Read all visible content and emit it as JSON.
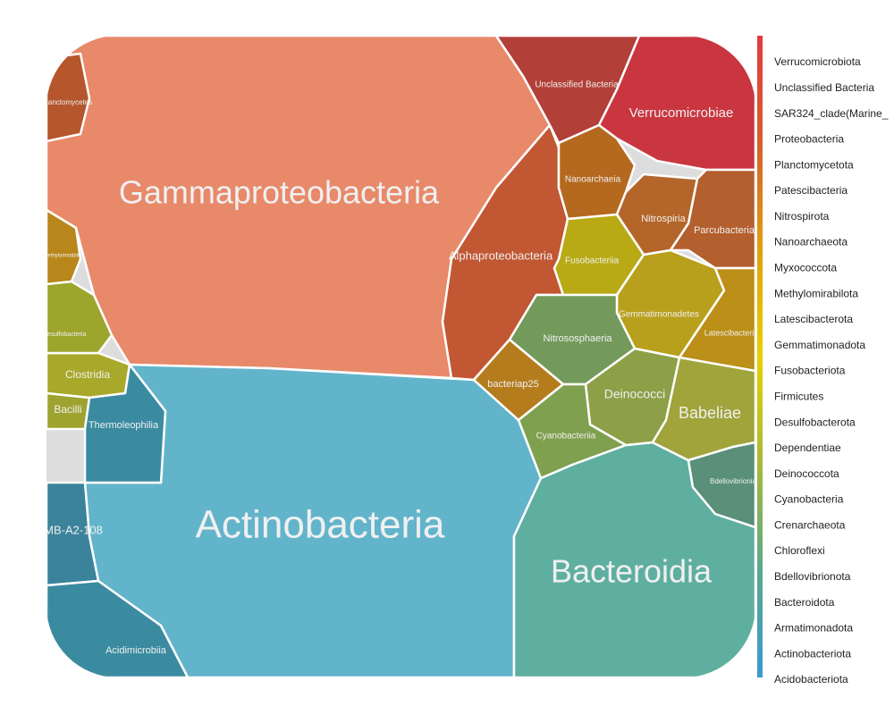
{
  "chart_data": {
    "type": "voronoi-treemap",
    "cells": [
      {
        "label": "Gammaproteobacteria",
        "color": "#e8896a"
      },
      {
        "label": "Actinobacteria",
        "color": "#62b4cb"
      },
      {
        "label": "Bacteroidia",
        "color": "#5fafa0"
      },
      {
        "label": "Alphaproteobacteria",
        "color": "#c25733"
      },
      {
        "label": "Unclassified Bacteria",
        "color": "#b23f38"
      },
      {
        "label": "Verrucomicrobiae",
        "color": "#c93640"
      },
      {
        "label": "Nanoarchaeia",
        "color": "#b5691f"
      },
      {
        "label": "Nitrospiria",
        "color": "#b4662a"
      },
      {
        "label": "Parcubacteria",
        "color": "#b35f2e"
      },
      {
        "label": "Fusobacteriia",
        "color": "#b9aa15"
      },
      {
        "label": "Gemmatimonadetes",
        "color": "#b8a01d"
      },
      {
        "label": "Latescibacteria",
        "color": "#bb8f18"
      },
      {
        "label": "Nitrososphaeria",
        "color": "#739a5b"
      },
      {
        "label": "bacteriap25",
        "color": "#b57c1e"
      },
      {
        "label": "Deinococci",
        "color": "#8ea047"
      },
      {
        "label": "Babeliae",
        "color": "#a0a43a"
      },
      {
        "label": "Cyanobacteriia",
        "color": "#7fa04e"
      },
      {
        "label": "Bdellovibrionia",
        "color": "#5a8f7a"
      },
      {
        "label": "Clostridia",
        "color": "#a8a82a"
      },
      {
        "label": "Bacilli",
        "color": "#9ea330"
      },
      {
        "label": "Thermoleophilia",
        "color": "#3b8ba0"
      },
      {
        "label": "MB-A2-108",
        "color": "#3a839a"
      },
      {
        "label": "Acidimicrobiia",
        "color": "#3b8ba0"
      },
      {
        "label": "Planctomycetes",
        "color": "#b5562d"
      },
      {
        "label": "Methylomirabilia",
        "color": "#b8861b"
      },
      {
        "label": "Desulfobacteria",
        "color": "#9da52d"
      }
    ],
    "legend": {
      "labels": [
        "Verrucomicrobiota",
        "Unclassified Bacteria",
        "SAR324_clade(Marine_",
        "Proteobacteria",
        "Planctomycetota",
        "Patescibacteria",
        "Nitrospirota",
        "Nanoarchaeota",
        "Myxococcota",
        "Methylomirabilota",
        "Latescibacterota",
        "Gemmatimonadota",
        "Fusobacteriota",
        "Firmicutes",
        "Desulfobacterota",
        "Dependentiae",
        "Deinococcota",
        "Cyanobacteria",
        "Crenarchaeota",
        "Chloroflexi",
        "Bdellovibrionota",
        "Bacteroidota",
        "Armatimonadota",
        "Actinobacteriota",
        "Acidobacteriota"
      ],
      "colors": [
        "#e23b3f",
        "#d6602a",
        "#e0a010",
        "#e8d000",
        "#a8b83a",
        "#5aa890",
        "#3a9ad0"
      ]
    }
  }
}
